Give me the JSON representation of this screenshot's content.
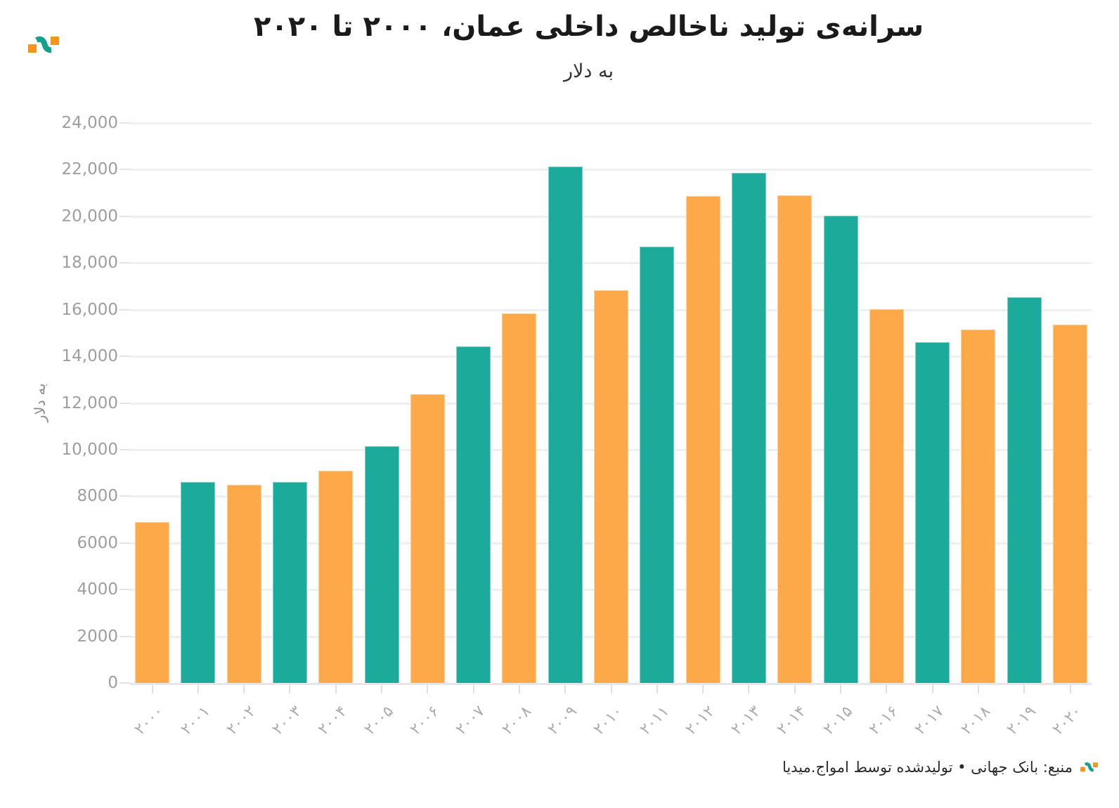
{
  "header": {
    "title": "سرانه‌ی تولید ناخالص داخلی عمان، ۲۰۰۰ تا ۲۰۲۰",
    "subtitle": "به دلار"
  },
  "footer": {
    "text": "منبع: بانک جهانی • تولیدشده توسط امواج.میدیا"
  },
  "branding": {
    "logo": "amwaj-media-logo",
    "logo_orange": "#F7941E",
    "logo_teal": "#13A18E"
  },
  "colors": {
    "bar_orange": "#FDA94A",
    "bar_teal": "#1CAB9B",
    "grid": "#EFEFEF",
    "axis": "#E7E7E7",
    "y_tick_label": "#9E9E9E",
    "x_tick_label": "#ABABAB",
    "title_text": "#1A1A1A"
  },
  "chart_data": {
    "type": "bar",
    "title": "سرانه‌ی تولید ناخالص داخلی عمان، ۲۰۰۰ تا ۲۰۲۰",
    "subtitle": "به دلار",
    "xlabel": "",
    "ylabel": "به دلار",
    "categories": [
      "۲۰۰۰",
      "۲۰۰۱",
      "۲۰۰۲",
      "۲۰۰۳",
      "۲۰۰۴",
      "۲۰۰۵",
      "۲۰۰۶",
      "۲۰۰۷",
      "۲۰۰۸",
      "۲۰۰۹",
      "۲۰۱۰",
      "۲۰۱۱",
      "۲۰۱۲",
      "۲۰۱۳",
      "۲۰۱۴",
      "۲۰۱۵",
      "۲۰۱۶",
      "۲۰۱۷",
      "۲۰۱۸",
      "۲۰۱۹",
      "۲۰۲۰"
    ],
    "categories_latin": [
      "2000",
      "2001",
      "2002",
      "2003",
      "2004",
      "2005",
      "2006",
      "2007",
      "2008",
      "2009",
      "2010",
      "2011",
      "2012",
      "2013",
      "2014",
      "2015",
      "2016",
      "2017",
      "2018",
      "2019",
      "2020"
    ],
    "values": [
      6900,
      8600,
      8480,
      8620,
      9080,
      10150,
      12380,
      14430,
      15840,
      22120,
      16840,
      18700,
      20870,
      21860,
      20890,
      20040,
      16020,
      14610,
      15150,
      16530,
      15360
    ],
    "bar_color_pattern": [
      "#FDA94A",
      "#1CAB9B"
    ],
    "ylim": [
      0,
      24000
    ],
    "ytick_values": [
      0,
      2000,
      4000,
      6000,
      8000,
      10000,
      12000,
      14000,
      16000,
      18000,
      20000,
      22000,
      24000
    ],
    "ytick_labels": [
      "0",
      "2000",
      "4000",
      "6000",
      "8000",
      "10,000",
      "12,000",
      "14,000",
      "16,000",
      "18,000",
      "20,000",
      "22,000",
      "24,000"
    ],
    "grid": "horizontal",
    "legend": "none"
  }
}
